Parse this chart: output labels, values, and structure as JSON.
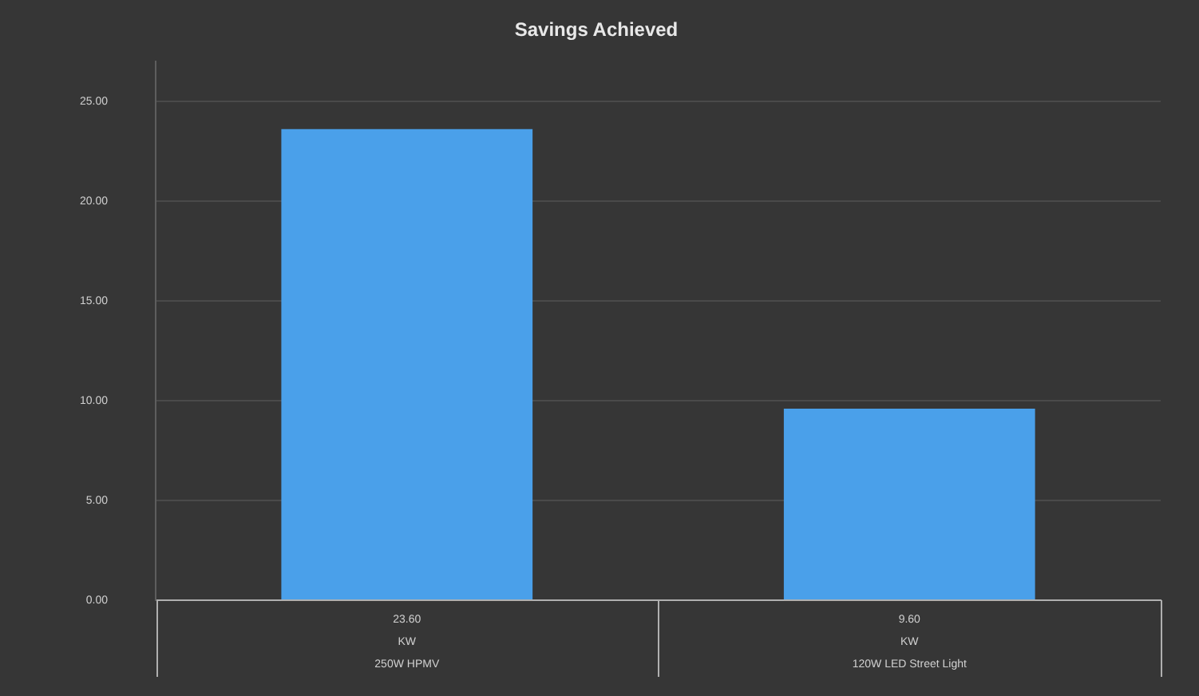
{
  "chart_data": {
    "type": "bar",
    "title": "Savings Achieved",
    "categories": [
      "250W HPMV",
      "120W LED Street Light"
    ],
    "values": [
      23.6,
      9.6
    ],
    "color": "#4aa0ea",
    "value_labels": [
      "23.60",
      "9.60"
    ],
    "annotations": [
      "KW"
    ],
    "ylim": [
      0,
      27
    ],
    "yticks": [
      {
        "value": 0,
        "label": "0.00"
      },
      {
        "value": 5,
        "label": "5.00"
      },
      {
        "value": 10,
        "label": "10.00"
      },
      {
        "value": 15,
        "label": "15.00"
      },
      {
        "value": 20,
        "label": "20.00"
      },
      {
        "value": 25,
        "label": "25.00"
      }
    ],
    "grid": "y",
    "legend": false
  }
}
